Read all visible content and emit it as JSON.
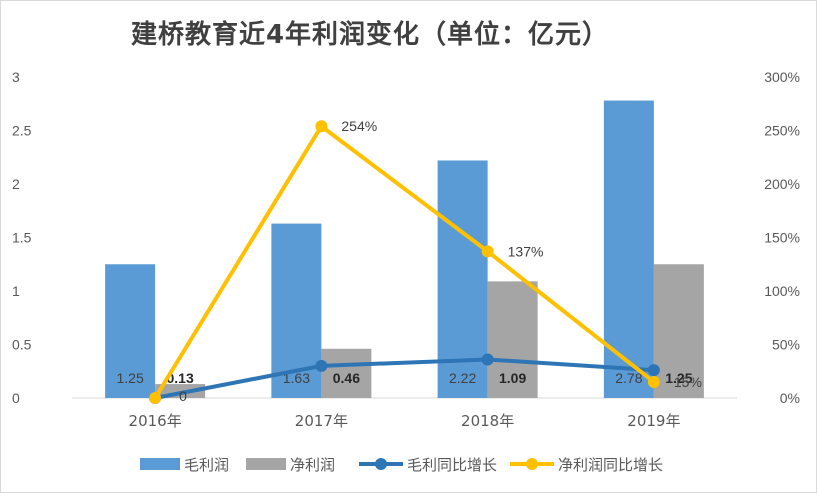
{
  "chart_data": {
    "type": "bar",
    "title": "建桥教育近4年利润变化（单位：亿元）",
    "categories": [
      "2016年",
      "2017年",
      "2018年",
      "2019年"
    ],
    "y_left": {
      "min": 0,
      "max": 3,
      "ticks": [
        "0",
        "0.5",
        "1",
        "1.5",
        "2",
        "2.5",
        "3"
      ]
    },
    "y_right": {
      "min": 0,
      "max": 300,
      "ticks": [
        "0%",
        "50%",
        "100%",
        "150%",
        "200%",
        "250%",
        "300%"
      ]
    },
    "series": [
      {
        "name": "毛利润",
        "kind": "bar",
        "axis": "left",
        "color": "#5b9bd5",
        "values": [
          1.25,
          1.63,
          2.22,
          2.78
        ],
        "labels": [
          "1.25",
          "1.63",
          "2.22",
          "2.78"
        ]
      },
      {
        "name": "净利润",
        "kind": "bar",
        "axis": "left",
        "color": "#a5a5a5",
        "values": [
          0.13,
          0.46,
          1.09,
          1.25
        ],
        "labels": [
          "0.13",
          "0.46",
          "1.09",
          "1.25"
        ]
      },
      {
        "name": "毛利同比增长",
        "kind": "line",
        "axis": "right",
        "color": "#2e75b6",
        "values": [
          0,
          30,
          36,
          26
        ],
        "labels": []
      },
      {
        "name": "净利润同比增长",
        "kind": "line",
        "axis": "right",
        "color": "#ffc000",
        "values": [
          0,
          254,
          137,
          15
        ],
        "labels": [
          "0",
          "254%",
          "137%",
          "15%"
        ]
      }
    ],
    "grid": false,
    "legend": "bottom"
  }
}
